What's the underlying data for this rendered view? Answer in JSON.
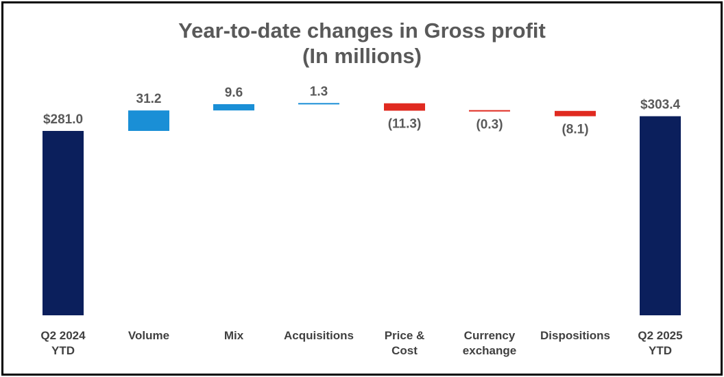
{
  "title_line1": "Year-to-date changes in Gross profit",
  "title_line2": "(In millions)",
  "colors": {
    "total": "#0B1F5C",
    "increase": "#1A8FD6",
    "decrease": "#E02A20",
    "label": "#595959",
    "category": "#404040"
  },
  "chart_data": {
    "type": "bar",
    "subtype": "waterfall",
    "title": "Year-to-date changes in Gross profit (In millions)",
    "categories": [
      [
        "Q2 2024",
        "YTD"
      ],
      [
        "Volume"
      ],
      [
        "Mix"
      ],
      [
        "Acquisitions"
      ],
      [
        "Price &",
        "Cost"
      ],
      [
        "Currency",
        "exchange"
      ],
      [
        "Dispositions"
      ],
      [
        "Q2 2025",
        "YTD"
      ]
    ],
    "values": [
      281.0,
      31.2,
      9.6,
      1.3,
      -11.3,
      -0.3,
      -8.1,
      303.4
    ],
    "kinds": [
      "total",
      "increase",
      "increase",
      "increase",
      "decrease",
      "decrease",
      "decrease",
      "total"
    ],
    "labels": [
      "$281.0",
      "31.2",
      "9.6",
      "1.3",
      "(11.3)",
      "(0.3)",
      "(8.1)",
      "$303.4"
    ],
    "ylim": [
      0,
      312
    ],
    "grid": false,
    "legend": "none"
  }
}
